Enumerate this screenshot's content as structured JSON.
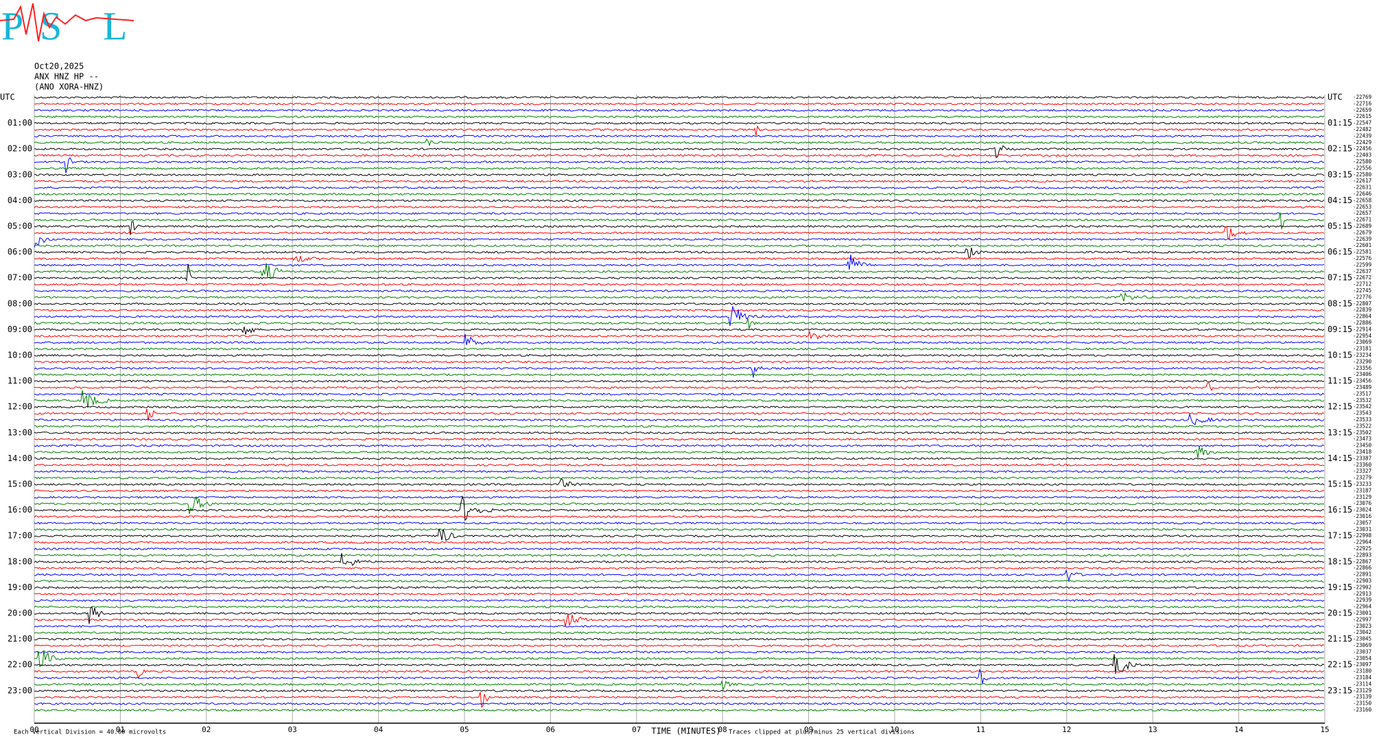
{
  "chart_data": {
    "type": "helicorder",
    "logo": [
      "P",
      "S",
      "L"
    ],
    "header": [
      "Oct20,2025",
      "ANX HNZ HP --",
      "(ANO XORA-HNZ)"
    ],
    "xlabel": "TIME (MINUTES)",
    "scale_note": "Each Vertical Division =    40.00 microvolts",
    "clip_note": "Traces clipped at plus/minus 25 vertical divisions",
    "xlim": [
      0,
      15
    ],
    "xticks": [
      {
        "value": 0,
        "label": "00"
      },
      {
        "value": 1,
        "label": "01"
      },
      {
        "value": 2,
        "label": "02"
      },
      {
        "value": 3,
        "label": "03"
      },
      {
        "value": 4,
        "label": "04"
      },
      {
        "value": 5,
        "label": "05"
      },
      {
        "value": 6,
        "label": "06"
      },
      {
        "value": 7,
        "label": "07"
      },
      {
        "value": 8,
        "label": "08"
      },
      {
        "value": 9,
        "label": "09"
      },
      10,
      11,
      12,
      13,
      14,
      15
    ],
    "grid": true,
    "colors": [
      "#000000",
      "#ff0000",
      "#0000ff",
      "#008000"
    ],
    "rows_per_label": 4,
    "left_labels": [
      "UTC",
      "01:00",
      "02:00",
      "03:00",
      "04:00",
      "05:00",
      "06:00",
      "07:00",
      "08:00",
      "09:00",
      "10:00",
      "11:00",
      "12:00",
      "13:00",
      "14:00",
      "15:00",
      "16:00",
      "17:00",
      "18:00",
      "19:00",
      "20:00",
      "21:00",
      "22:00",
      "23:00"
    ],
    "right_labels": [
      "UTC",
      "01:15",
      "02:15",
      "03:15",
      "04:15",
      "05:15",
      "06:15",
      "07:15",
      "08:15",
      "09:15",
      "10:15",
      "11:15",
      "12:15",
      "13:15",
      "14:15",
      "15:15",
      "16:15",
      "17:15",
      "18:15",
      "19:15",
      "20:15",
      "21:15",
      "22:15",
      "23:15"
    ],
    "row_counts": [
      -22769,
      -22716,
      -22659,
      -22615,
      -22547,
      -22482,
      -22439,
      -22429,
      -22456,
      -22403,
      -22580,
      -22556,
      -22580,
      -22617,
      -22631,
      -22646,
      -22658,
      -22653,
      -22657,
      -22671,
      -22689,
      -22679,
      -22639,
      -22601,
      -22581,
      -22576,
      -22599,
      -22637,
      -22672,
      -22712,
      -22745,
      -22776,
      -22807,
      -22839,
      -22864,
      -22886,
      -22914,
      -22954,
      -23069,
      -23181,
      -23234,
      -23290,
      -23356,
      -23406,
      -23456,
      -23489,
      -23517,
      -23532,
      -23542,
      -23543,
      -23533,
      -23522,
      -23502,
      -23473,
      -23450,
      -23418,
      -23387,
      -23360,
      -23327,
      -23279,
      -23233,
      -23187,
      -23129,
      -23076,
      -23024,
      -23016,
      -23057,
      -23031,
      -22998,
      -22964,
      -22925,
      -22893,
      -22867,
      -22866,
      -22891,
      -22903,
      -22902,
      -22913,
      -22939,
      -22964,
      -23001,
      -22997,
      -23023,
      -23042,
      -23045,
      -23069,
      -23037,
      -23054,
      -23097,
      -23180,
      -23184,
      -23114,
      -23129,
      -23139,
      -23150,
      -23160
    ]
  }
}
